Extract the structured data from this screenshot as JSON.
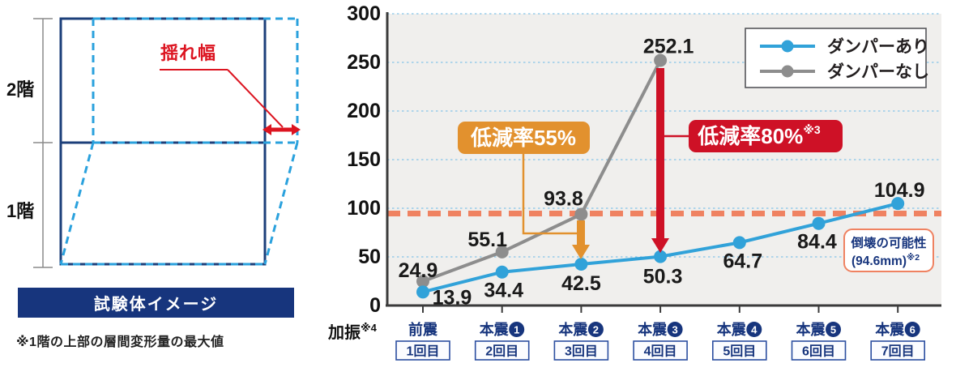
{
  "colors": {
    "blue": "#31a2d9",
    "gray": "#8d8d8d",
    "navy": "#17357d",
    "orange": "#e2912e",
    "red": "#ce1126",
    "salmon": "#ef8261",
    "grid": "#85c3e8",
    "plot_bg": "#f0efed",
    "axis": "#3b3b3b",
    "diagram_navy": "#1c3f7a",
    "diagram_cyan": "#2aa1dd",
    "diagram_red": "#dc1420"
  },
  "left_panel": {
    "floor2_label": "2階",
    "floor1_label": "1階",
    "sway_label": "揺れ幅",
    "banner": "試験体イメージ",
    "note": "※1階の上部の層間変形量の最大値"
  },
  "chart_data": {
    "type": "line",
    "categories": [
      {
        "main": "前震",
        "num": "",
        "trial": "1回目"
      },
      {
        "main": "本震",
        "num": "1",
        "trial": "2回目"
      },
      {
        "main": "本震",
        "num": "2",
        "trial": "3回目"
      },
      {
        "main": "本震",
        "num": "3",
        "trial": "4回目"
      },
      {
        "main": "本震",
        "num": "4",
        "trial": "5回目"
      },
      {
        "main": "本震",
        "num": "5",
        "trial": "6回目"
      },
      {
        "main": "本震",
        "num": "6",
        "trial": "7回目"
      }
    ],
    "x_axis_label": {
      "text": "加振",
      "note": "※4"
    },
    "yticks": [
      0,
      50,
      100,
      150,
      200,
      250,
      300
    ],
    "ylim": [
      0,
      300
    ],
    "grid": "dashed-blue-horizontal",
    "legend_position": "top-right",
    "series": [
      {
        "name": "ダンパーあり",
        "color_key": "blue",
        "values": [
          13.9,
          34.4,
          42.5,
          50.3,
          64.7,
          84.4,
          104.9
        ]
      },
      {
        "name": "ダンパーなし",
        "color_key": "gray",
        "values": [
          24.9,
          55.1,
          93.8,
          252.1
        ]
      }
    ],
    "threshold": {
      "value": 94.6,
      "label_line1": "倒壊の可能性",
      "label_line2": "(94.6mm)",
      "label_note": "※2"
    },
    "annotations": [
      {
        "text": "低減率55%",
        "note": "",
        "color_key": "orange",
        "category_index": 2
      },
      {
        "text": "低減率80%",
        "note": "※3",
        "color_key": "red",
        "category_index": 3
      }
    ]
  }
}
